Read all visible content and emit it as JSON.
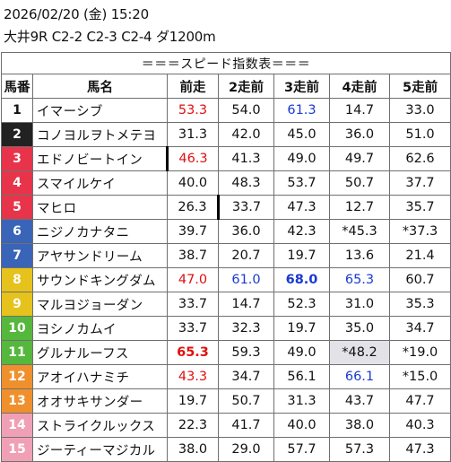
{
  "header": {
    "line1": "2026/02/20 (金) 15:20",
    "line2": "大井9R C2-2 C2-3 C2-4 ダ1200m"
  },
  "table": {
    "banner": "＝＝＝スピード指数表＝＝＝",
    "columns": [
      "馬番",
      "馬名",
      "前走",
      "2走前",
      "3走前",
      "4走前",
      "5走前"
    ],
    "rows": [
      {
        "num": "1",
        "name": "イマーシブ",
        "color": "#ffffff",
        "vals": [
          "53.3",
          "54.0",
          "61.3",
          "14.7",
          "33.0"
        ],
        "styles": [
          "red",
          "",
          "blue",
          "",
          ""
        ]
      },
      {
        "num": "2",
        "name": "コノヨルヲトメテヨ",
        "color": "#222222",
        "vals": [
          "31.3",
          "42.0",
          "45.0",
          "36.0",
          "51.0"
        ],
        "styles": [
          "",
          "",
          "",
          "",
          ""
        ]
      },
      {
        "num": "3",
        "name": "エドノビートイン",
        "color": "#e8344a",
        "vals": [
          "46.3",
          "41.3",
          "49.0",
          "49.7",
          "62.6"
        ],
        "styles": [
          "red bar",
          "",
          "",
          "",
          ""
        ]
      },
      {
        "num": "4",
        "name": "スマイルケイ",
        "color": "#e8344a",
        "vals": [
          "40.0",
          "48.3",
          "53.7",
          "50.7",
          "37.7"
        ],
        "styles": [
          "",
          "",
          "",
          "",
          ""
        ]
      },
      {
        "num": "5",
        "name": "マヒロ",
        "color": "#e8344a",
        "vals": [
          "26.3",
          "33.7",
          "47.3",
          "12.7",
          "35.7"
        ],
        "styles": [
          "",
          "bar",
          "",
          "",
          ""
        ]
      },
      {
        "num": "6",
        "name": "ニジノカナタニ",
        "color": "#3a64b8",
        "vals": [
          "39.7",
          "36.0",
          "42.3",
          "*45.3",
          "*37.3"
        ],
        "styles": [
          "",
          "",
          "",
          "",
          ""
        ]
      },
      {
        "num": "7",
        "name": "アヤサンドリーム",
        "color": "#3a64b8",
        "vals": [
          "38.7",
          "20.7",
          "19.7",
          "13.6",
          "21.4"
        ],
        "styles": [
          "",
          "",
          "",
          "",
          ""
        ]
      },
      {
        "num": "8",
        "name": "サウンドキングダム",
        "color": "#e6c21c",
        "vals": [
          "47.0",
          "61.0",
          "68.0",
          "65.3",
          "60.7"
        ],
        "styles": [
          "red",
          "blue",
          "blue bold",
          "blue",
          ""
        ]
      },
      {
        "num": "9",
        "name": "マルヨジョーダン",
        "color": "#e6c21c",
        "vals": [
          "33.7",
          "14.7",
          "52.3",
          "31.0",
          "35.3"
        ],
        "styles": [
          "",
          "",
          "",
          "",
          ""
        ]
      },
      {
        "num": "10",
        "name": "ヨシノカムイ",
        "color": "#55b83c",
        "vals": [
          "33.7",
          "32.3",
          "19.7",
          "35.0",
          "34.7"
        ],
        "styles": [
          "",
          "",
          "",
          "",
          ""
        ]
      },
      {
        "num": "11",
        "name": "グルナルーフス",
        "color": "#55b83c",
        "vals": [
          "65.3",
          "59.3",
          "49.0",
          "*48.2",
          "*19.0"
        ],
        "styles": [
          "red bold",
          "",
          "",
          "gray",
          ""
        ]
      },
      {
        "num": "12",
        "name": "アオイハナミチ",
        "color": "#f0902c",
        "vals": [
          "43.3",
          "34.7",
          "56.1",
          "66.1",
          "*15.0"
        ],
        "styles": [
          "red",
          "",
          "",
          "blue",
          ""
        ]
      },
      {
        "num": "13",
        "name": "オオサキサンダー",
        "color": "#f0902c",
        "vals": [
          "19.7",
          "50.7",
          "31.3",
          "43.7",
          "47.7"
        ],
        "styles": [
          "",
          "",
          "",
          "",
          ""
        ]
      },
      {
        "num": "14",
        "name": "ストライクルックス",
        "color": "#f0a0b4",
        "vals": [
          "22.3",
          "41.7",
          "40.0",
          "38.0",
          "40.3"
        ],
        "styles": [
          "",
          "",
          "",
          "",
          ""
        ]
      },
      {
        "num": "15",
        "name": "ジーティーマジカル",
        "color": "#f0a0b4",
        "vals": [
          "38.0",
          "29.0",
          "57.7",
          "57.3",
          "47.3"
        ],
        "styles": [
          "",
          "",
          "",
          "",
          ""
        ]
      }
    ]
  }
}
